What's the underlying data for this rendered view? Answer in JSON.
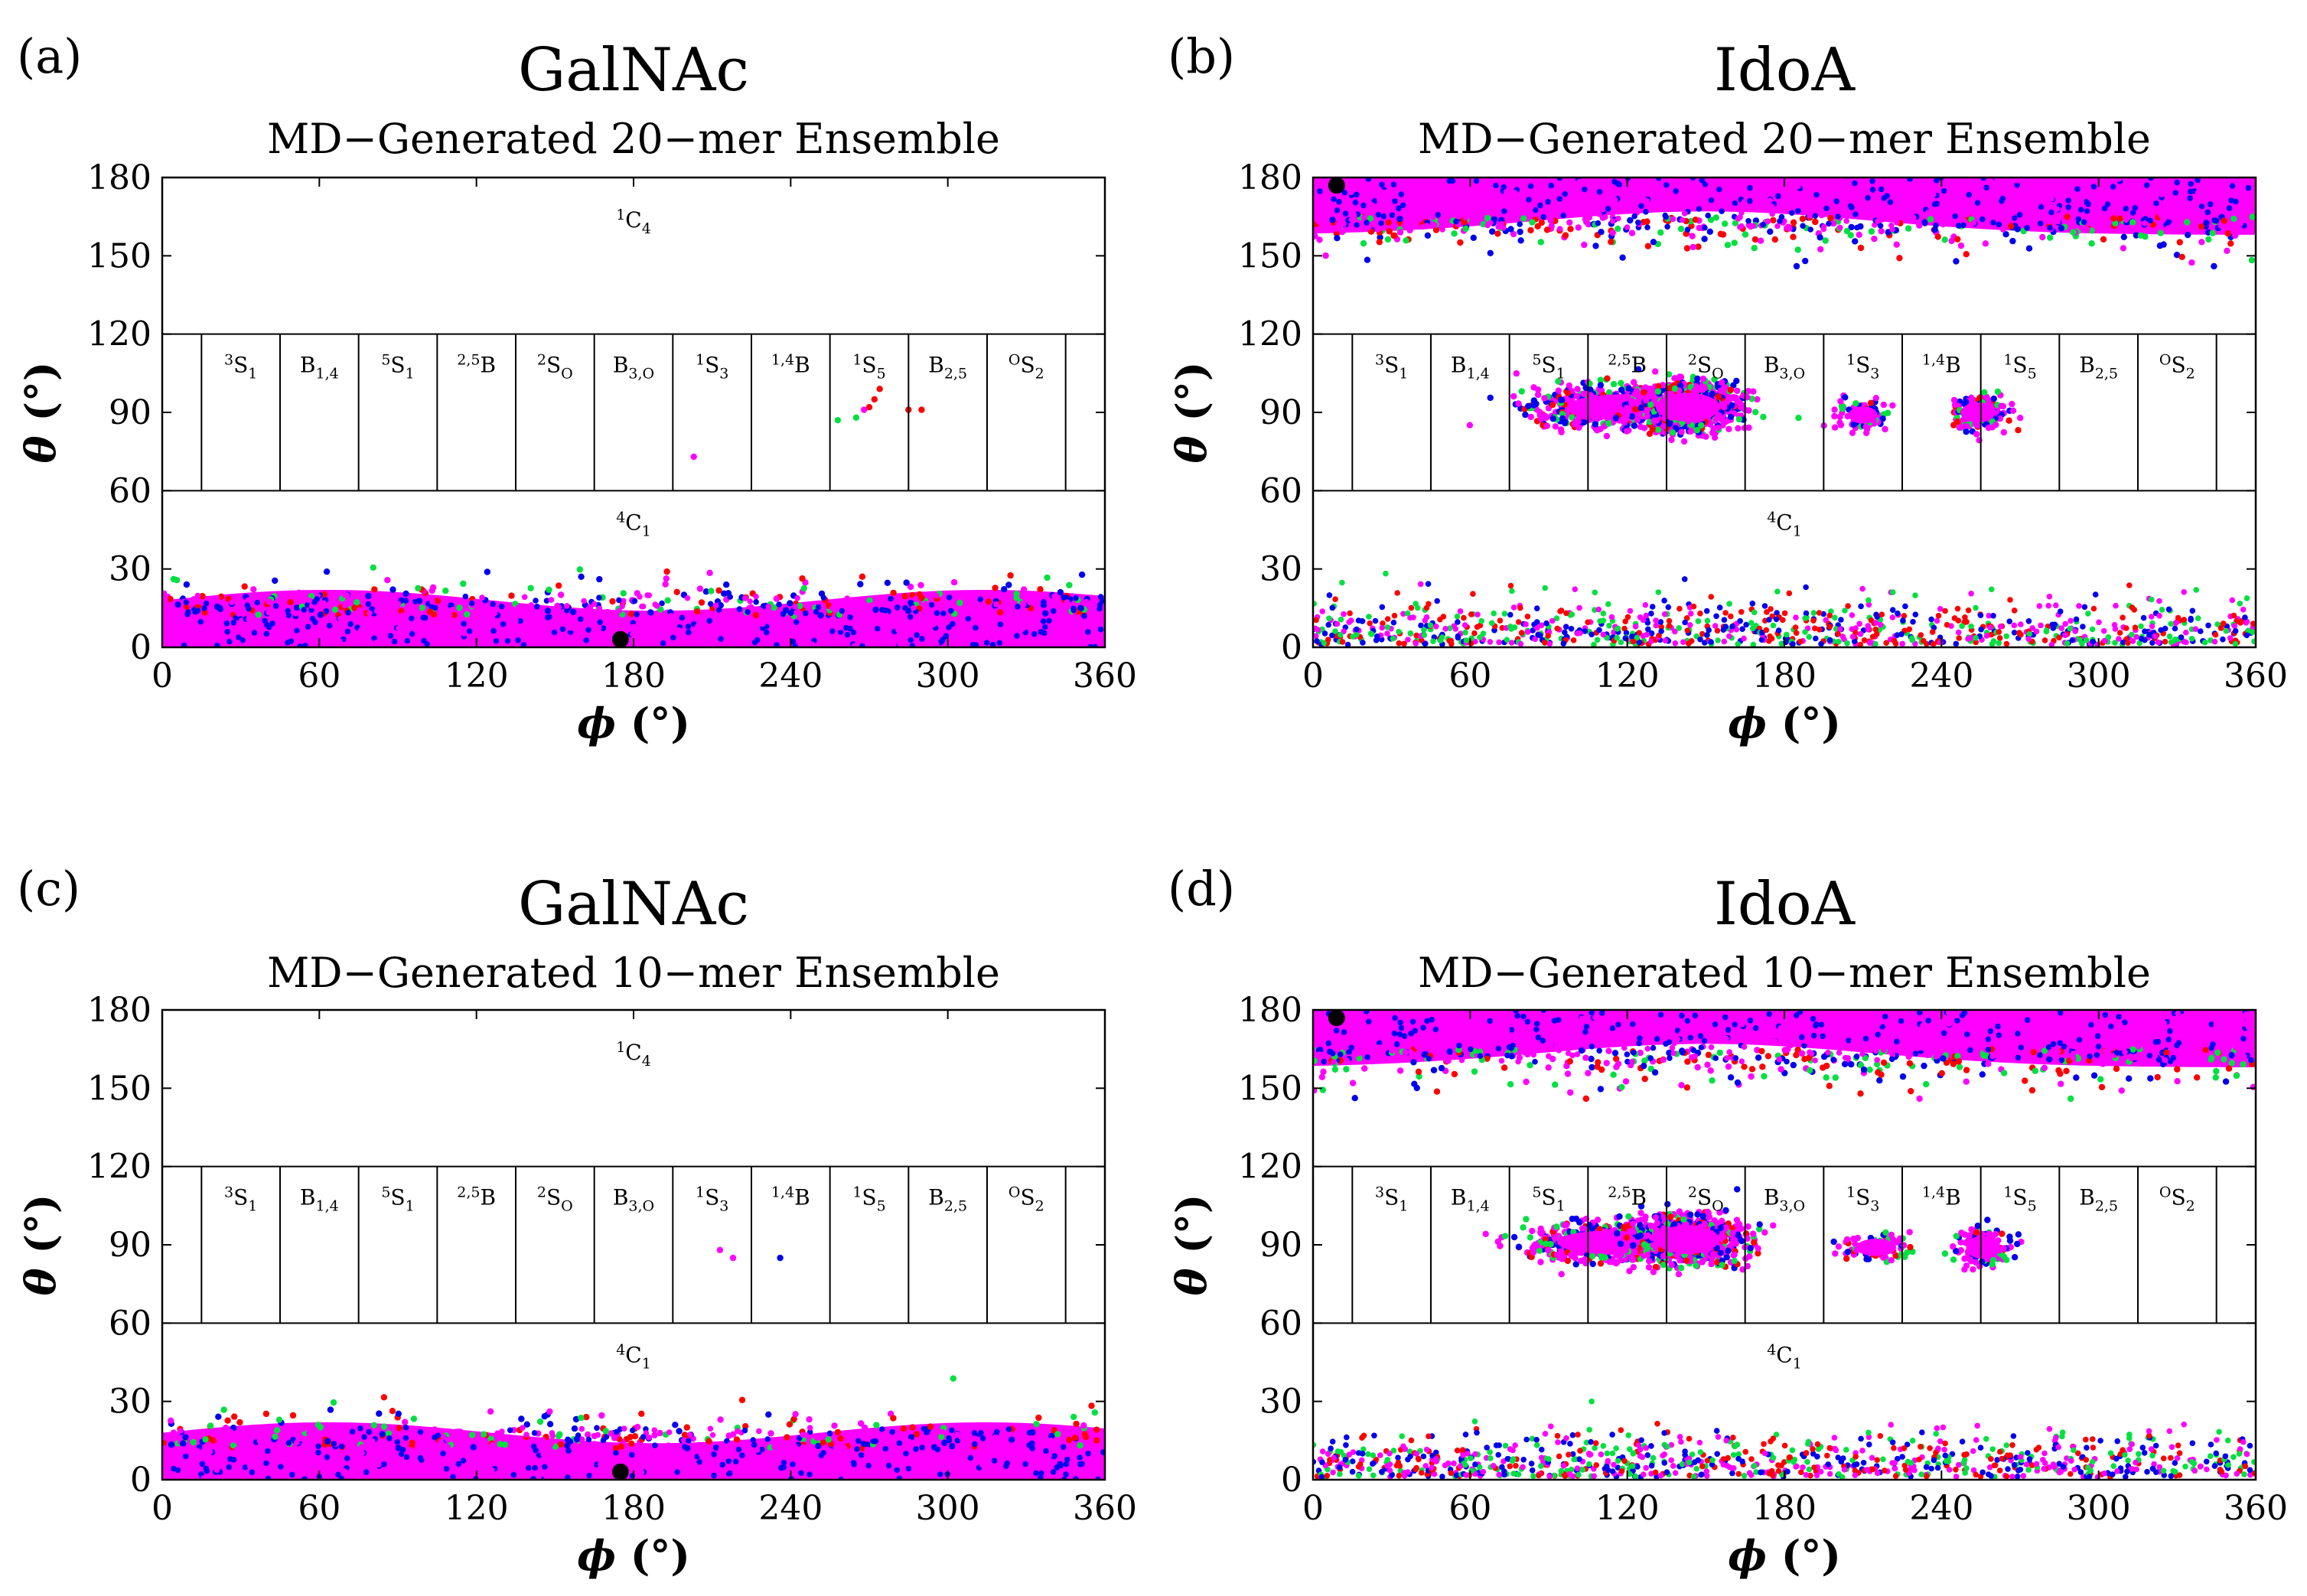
{
  "colors": {
    "red": "#ff0000",
    "green": "#00e040",
    "blue": "#0000ee",
    "magenta": "#ff00ff",
    "black": "#000000"
  },
  "chart_data": [
    {
      "type": "scatter",
      "panel": "(a)",
      "title": "GalNAc",
      "subtitle": "MD−Generated 20−mer Ensemble",
      "xlabel": {
        "symbol": "ϕ",
        "unit": " (°)"
      },
      "ylabel": {
        "symbol": "θ",
        "unit": " (°)"
      },
      "xlim": [
        0,
        360
      ],
      "ylim": [
        0,
        180
      ],
      "xticks": [
        "0",
        "60",
        "120",
        "180",
        "240",
        "300",
        "360"
      ],
      "yticks": [
        "0",
        "30",
        "60",
        "90",
        "120",
        "150",
        "180"
      ],
      "chair_labels": {
        "top": {
          "sup": "1",
          "main": "C",
          "sub": "4"
        },
        "bottom": {
          "sup": "4",
          "main": "C",
          "sub": "1"
        }
      },
      "equator_labels": [
        {
          "pre": "",
          "sup": "3",
          "main": "S",
          "sub": "1",
          "post": ""
        },
        {
          "pre": "B",
          "sup": "",
          "main": "",
          "sub": "1,4",
          "post": ""
        },
        {
          "pre": "",
          "sup": "5",
          "main": "S",
          "sub": "1",
          "post": ""
        },
        {
          "pre": "",
          "sup": "2,5",
          "main": "B",
          "sub": "",
          "post": ""
        },
        {
          "pre": "",
          "sup": "2",
          "main": "S",
          "sub": "O",
          "post": ""
        },
        {
          "pre": "B",
          "sup": "",
          "main": "",
          "sub": "3,O",
          "post": ""
        },
        {
          "pre": "",
          "sup": "1",
          "main": "S",
          "sub": "3",
          "post": ""
        },
        {
          "pre": "",
          "sup": "1,4",
          "main": "B",
          "sub": "",
          "post": ""
        },
        {
          "pre": "",
          "sup": "1",
          "main": "S",
          "sub": "5",
          "post": ""
        },
        {
          "pre": "B",
          "sup": "",
          "main": "",
          "sub": "2,5",
          "post": ""
        },
        {
          "pre": "",
          "sup": "O",
          "main": "S",
          "sub": "2",
          "post": ""
        }
      ],
      "bands": [
        {
          "phi": [
            0,
            360
          ],
          "theta_mean": 8,
          "theta_max": 22,
          "colors": [
            "magenta",
            "blue",
            "green",
            "red"
          ],
          "n_outliers": 260,
          "outlier_max": 36
        }
      ],
      "clusters": [],
      "points": [
        {
          "phi": 203,
          "theta": 73,
          "color": "magenta"
        },
        {
          "phi": 258,
          "theta": 87,
          "color": "green"
        },
        {
          "phi": 265,
          "theta": 88,
          "color": "green"
        },
        {
          "phi": 270,
          "theta": 92,
          "color": "red"
        },
        {
          "phi": 272,
          "theta": 95,
          "color": "red"
        },
        {
          "phi": 274,
          "theta": 99,
          "color": "red"
        },
        {
          "phi": 268,
          "theta": 91,
          "color": "magenta"
        },
        {
          "phi": 285,
          "theta": 91,
          "color": "red"
        },
        {
          "phi": 290,
          "theta": 91,
          "color": "red"
        }
      ],
      "reference_point": {
        "phi": 175,
        "theta": 3
      }
    },
    {
      "type": "scatter",
      "panel": "(b)",
      "title": "IdoA",
      "subtitle": "MD−Generated 20−mer Ensemble",
      "xlabel": {
        "symbol": "ϕ",
        "unit": " (°)"
      },
      "ylabel": {
        "symbol": "θ",
        "unit": " (°)"
      },
      "xlim": [
        0,
        360
      ],
      "ylim": [
        0,
        180
      ],
      "xticks": [
        "0",
        "60",
        "120",
        "180",
        "240",
        "300",
        "360"
      ],
      "yticks": [
        "0",
        "30",
        "60",
        "90",
        "120",
        "150",
        "180"
      ],
      "chair_labels": {
        "top": null,
        "bottom": {
          "sup": "4",
          "main": "C",
          "sub": "1"
        }
      },
      "equator_labels": [
        {
          "pre": "",
          "sup": "3",
          "main": "S",
          "sub": "1",
          "post": ""
        },
        {
          "pre": "B",
          "sup": "",
          "main": "",
          "sub": "1,4",
          "post": ""
        },
        {
          "pre": "",
          "sup": "5",
          "main": "S",
          "sub": "1",
          "post": ""
        },
        {
          "pre": "",
          "sup": "2,5",
          "main": "B",
          "sub": "",
          "post": ""
        },
        {
          "pre": "",
          "sup": "2",
          "main": "S",
          "sub": "O",
          "post": ""
        },
        {
          "pre": "B",
          "sup": "",
          "main": "",
          "sub": "3,O",
          "post": ""
        },
        {
          "pre": "",
          "sup": "1",
          "main": "S",
          "sub": "3",
          "post": ""
        },
        {
          "pre": "",
          "sup": "1,4",
          "main": "B",
          "sub": "",
          "post": ""
        },
        {
          "pre": "",
          "sup": "1",
          "main": "S",
          "sub": "5",
          "post": ""
        },
        {
          "pre": "B",
          "sup": "",
          "main": "",
          "sub": "2,5",
          "post": ""
        },
        {
          "pre": "",
          "sup": "O",
          "main": "S",
          "sub": "2",
          "post": ""
        }
      ],
      "bands": [
        {
          "phi": [
            0,
            360
          ],
          "theta_mean": 172,
          "theta_max": 22,
          "colors": [
            "magenta",
            "blue",
            "green",
            "red"
          ],
          "n_outliers": 320,
          "outlier_max": 34,
          "direction": "down"
        },
        {
          "phi": [
            0,
            360
          ],
          "theta_mean": 8,
          "theta_max": 28,
          "colors": [
            "magenta",
            "blue",
            "green",
            "red"
          ],
          "n_outliers": 900,
          "outlier_max": 34,
          "sparse": true
        }
      ],
      "clusters": [
        {
          "phi": 118,
          "theta": 92,
          "rphi": 38,
          "rtheta": 9,
          "n": 700
        },
        {
          "phi": 143,
          "theta": 92,
          "rphi": 22,
          "rtheta": 10,
          "n": 900
        },
        {
          "phi": 210,
          "theta": 89,
          "rphi": 10,
          "rtheta": 6,
          "n": 120
        },
        {
          "phi": 254,
          "theta": 90,
          "rphi": 12,
          "rtheta": 7,
          "n": 220
        }
      ],
      "points": [],
      "reference_point": {
        "phi": 9,
        "theta": 177
      }
    },
    {
      "type": "scatter",
      "panel": "(c)",
      "title": "GalNAc",
      "subtitle": "MD−Generated 10−mer Ensemble",
      "xlabel": {
        "symbol": "ϕ",
        "unit": " (°)"
      },
      "ylabel": {
        "symbol": "θ",
        "unit": " (°)"
      },
      "xlim": [
        0,
        360
      ],
      "ylim": [
        0,
        180
      ],
      "xticks": [
        "0",
        "60",
        "120",
        "180",
        "240",
        "300",
        "360"
      ],
      "yticks": [
        "0",
        "30",
        "60",
        "90",
        "120",
        "150",
        "180"
      ],
      "chair_labels": {
        "top": {
          "sup": "1",
          "main": "C",
          "sub": "4"
        },
        "bottom": {
          "sup": "4",
          "main": "C",
          "sub": "1"
        }
      },
      "equator_labels": [
        {
          "pre": "",
          "sup": "3",
          "main": "S",
          "sub": "1",
          "post": ""
        },
        {
          "pre": "B",
          "sup": "",
          "main": "",
          "sub": "1,4",
          "post": ""
        },
        {
          "pre": "",
          "sup": "5",
          "main": "S",
          "sub": "1",
          "post": ""
        },
        {
          "pre": "",
          "sup": "2,5",
          "main": "B",
          "sub": "",
          "post": ""
        },
        {
          "pre": "",
          "sup": "2",
          "main": "S",
          "sub": "O",
          "post": ""
        },
        {
          "pre": "B",
          "sup": "",
          "main": "",
          "sub": "3,O",
          "post": ""
        },
        {
          "pre": "",
          "sup": "1",
          "main": "S",
          "sub": "3",
          "post": ""
        },
        {
          "pre": "",
          "sup": "1,4",
          "main": "B",
          "sub": "",
          "post": ""
        },
        {
          "pre": "",
          "sup": "1",
          "main": "S",
          "sub": "5",
          "post": ""
        },
        {
          "pre": "B",
          "sup": "",
          "main": "",
          "sub": "2,5",
          "post": ""
        },
        {
          "pre": "",
          "sup": "O",
          "main": "S",
          "sub": "2",
          "post": ""
        }
      ],
      "bands": [
        {
          "phi": [
            0,
            360
          ],
          "theta_mean": 8,
          "theta_max": 22,
          "colors": [
            "magenta",
            "blue",
            "green",
            "red"
          ],
          "n_outliers": 260,
          "outlier_max": 40
        }
      ],
      "clusters": [],
      "points": [
        {
          "phi": 213,
          "theta": 88,
          "color": "magenta"
        },
        {
          "phi": 218,
          "theta": 85,
          "color": "magenta"
        },
        {
          "phi": 236,
          "theta": 85,
          "color": "blue"
        }
      ],
      "reference_point": {
        "phi": 175,
        "theta": 3
      }
    },
    {
      "type": "scatter",
      "panel": "(d)",
      "title": "IdoA",
      "subtitle": "MD−Generated 10−mer Ensemble",
      "xlabel": {
        "symbol": "ϕ",
        "unit": " (°)"
      },
      "ylabel": {
        "symbol": "θ",
        "unit": " (°)"
      },
      "xlim": [
        0,
        360
      ],
      "ylim": [
        0,
        180
      ],
      "xticks": [
        "0",
        "60",
        "120",
        "180",
        "240",
        "300",
        "360"
      ],
      "yticks": [
        "0",
        "30",
        "60",
        "90",
        "120",
        "150",
        "180"
      ],
      "chair_labels": {
        "top": null,
        "bottom": {
          "sup": "4",
          "main": "C",
          "sub": "1"
        }
      },
      "equator_labels": [
        {
          "pre": "",
          "sup": "3",
          "main": "S",
          "sub": "1",
          "post": ""
        },
        {
          "pre": "B",
          "sup": "",
          "main": "",
          "sub": "1,4",
          "post": ""
        },
        {
          "pre": "",
          "sup": "5",
          "main": "S",
          "sub": "1",
          "post": ""
        },
        {
          "pre": "",
          "sup": "2,5",
          "main": "B",
          "sub": "",
          "post": ""
        },
        {
          "pre": "",
          "sup": "2",
          "main": "S",
          "sub": "O",
          "post": ""
        },
        {
          "pre": "B",
          "sup": "",
          "main": "",
          "sub": "3,O",
          "post": ""
        },
        {
          "pre": "",
          "sup": "1",
          "main": "S",
          "sub": "3",
          "post": ""
        },
        {
          "pre": "",
          "sup": "1,4",
          "main": "B",
          "sub": "",
          "post": ""
        },
        {
          "pre": "",
          "sup": "1",
          "main": "S",
          "sub": "5",
          "post": ""
        },
        {
          "pre": "B",
          "sup": "",
          "main": "",
          "sub": "2,5",
          "post": ""
        },
        {
          "pre": "",
          "sup": "O",
          "main": "S",
          "sub": "2",
          "post": ""
        }
      ],
      "bands": [
        {
          "phi": [
            0,
            360
          ],
          "theta_mean": 172,
          "theta_max": 22,
          "colors": [
            "magenta",
            "blue",
            "green",
            "red"
          ],
          "n_outliers": 320,
          "outlier_max": 34,
          "direction": "down"
        },
        {
          "phi": [
            0,
            360
          ],
          "theta_mean": 8,
          "theta_max": 26,
          "colors": [
            "magenta",
            "blue",
            "green",
            "red"
          ],
          "n_outliers": 900,
          "outlier_max": 30,
          "sparse": true
        }
      ],
      "clusters": [
        {
          "phi": 112,
          "theta": 91,
          "rphi": 34,
          "rtheta": 8,
          "n": 600
        },
        {
          "phi": 143,
          "theta": 92,
          "rphi": 22,
          "rtheta": 10,
          "n": 900
        },
        {
          "phi": 215,
          "theta": 89,
          "rphi": 14,
          "rtheta": 6,
          "n": 90
        },
        {
          "phi": 256,
          "theta": 89,
          "rphi": 12,
          "rtheta": 8,
          "n": 140
        }
      ],
      "points": [],
      "reference_point": {
        "phi": 9,
        "theta": 177
      }
    }
  ]
}
